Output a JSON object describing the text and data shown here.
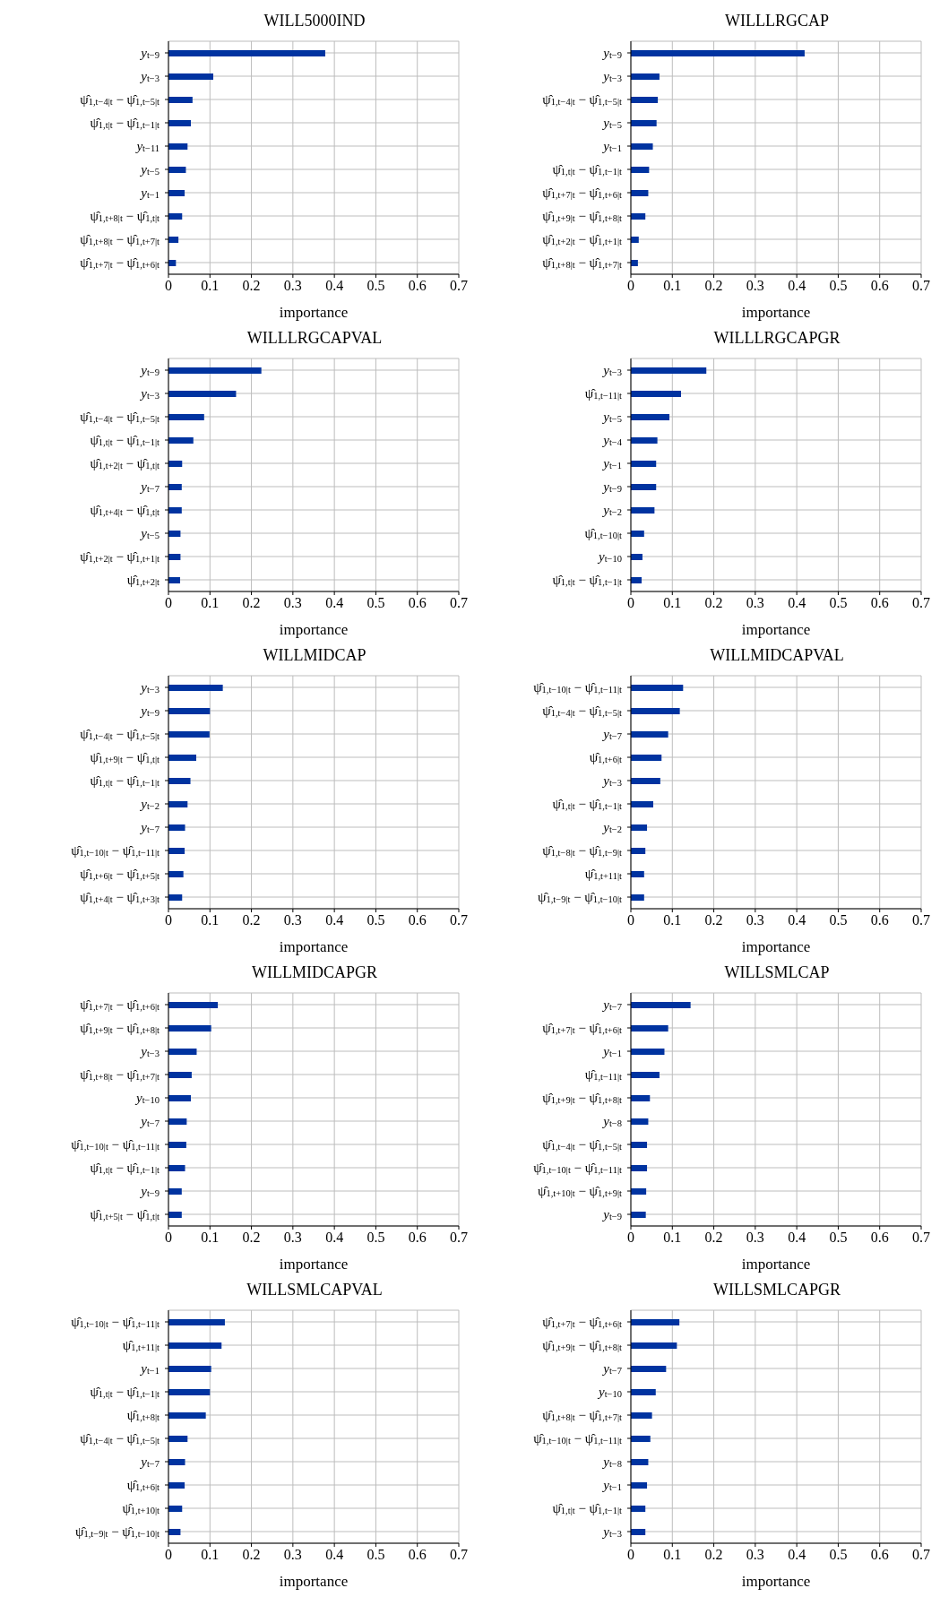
{
  "chart_data": [
    {
      "type": "bar",
      "orientation": "horizontal",
      "title": "WILL5000IND",
      "xlabel": "importance",
      "color": "#0033a0",
      "grid": true,
      "xlim": [
        0,
        0.7
      ],
      "xticks": [
        0,
        0.1,
        0.2,
        0.3,
        0.4,
        0.5,
        0.6,
        0.7
      ],
      "categories": [
        "y$_{t−9}$",
        "y$_{t−3}$",
        "ψ̂$_{1,t−4|t}$ − ψ̂$_{1,t−5|t}$",
        "ψ̂$_{1,t|t}$ − ψ̂$_{1,t−1|t}$",
        "y$_{t−11}$",
        "y$_{t−5}$",
        "y$_{t−1}$",
        "ψ̂$_{1,t+8|t}$ − ψ̂$_{1,t|t}$",
        "ψ̂$_{1,t+8|t}$ − ψ̂$_{1,t+7|t}$",
        "ψ̂$_{1,t+7|t}$ − ψ̂$_{1,t+6|t}$"
      ],
      "values": [
        0.378,
        0.108,
        0.058,
        0.054,
        0.046,
        0.042,
        0.039,
        0.033,
        0.024,
        0.018
      ]
    },
    {
      "type": "bar",
      "orientation": "horizontal",
      "title": "WILLLRGCAP",
      "xlabel": "importance",
      "color": "#0033a0",
      "grid": true,
      "xlim": [
        0,
        0.7
      ],
      "xticks": [
        0,
        0.1,
        0.2,
        0.3,
        0.4,
        0.5,
        0.6,
        0.7
      ],
      "categories": [
        "y$_{t−9}$",
        "y$_{t−3}$",
        "ψ̂$_{1,t−4|t}$ − ψ̂$_{1,t−5|t}$",
        "y$_{t−5}$",
        "y$_{t−1}$",
        "ψ̂$_{1,t|t}$ − ψ̂$_{1,t−1|t}$",
        "ψ̂$_{1,t+7|t}$ − ψ̂$_{1,t+6|t}$",
        "ψ̂$_{1,t+9|t}$ − ψ̂$_{1,t+8|t}$",
        "ψ̂$_{1,t+2|t}$ − ψ̂$_{1,t+1|t}$",
        "ψ̂$_{1,t+8|t}$ − ψ̂$_{1,t+7|t}$"
      ],
      "values": [
        0.419,
        0.069,
        0.065,
        0.062,
        0.053,
        0.044,
        0.042,
        0.035,
        0.019,
        0.017
      ]
    },
    {
      "type": "bar",
      "orientation": "horizontal",
      "title": "WILLLRGCAPVAL",
      "xlabel": "importance",
      "color": "#0033a0",
      "grid": true,
      "xlim": [
        0,
        0.7
      ],
      "xticks": [
        0,
        0.1,
        0.2,
        0.3,
        0.4,
        0.5,
        0.6,
        0.7
      ],
      "categories": [
        "y$_{t−9}$",
        "y$_{t−3}$",
        "ψ̂$_{1,t−4|t}$ − ψ̂$_{1,t−5|t}$",
        "ψ̂$_{1,t|t}$ − ψ̂$_{1,t−1|t}$",
        "ψ̂$_{1,t+2|t}$ − ψ̂$_{1,t|t}$",
        "y$_{t−7}$",
        "ψ̂$_{1,t+4|t}$ − ψ̂$_{1,t|t}$",
        "y$_{t−5}$",
        "ψ̂$_{1,t+2|t}$ − ψ̂$_{1,t+1|t}$",
        "ψ̂$_{1,t+2|t}$"
      ],
      "values": [
        0.224,
        0.163,
        0.086,
        0.06,
        0.033,
        0.032,
        0.032,
        0.029,
        0.029,
        0.028
      ]
    },
    {
      "type": "bar",
      "orientation": "horizontal",
      "title": "WILLLRGCAPGR",
      "xlabel": "importance",
      "color": "#0033a0",
      "grid": true,
      "xlim": [
        0,
        0.7
      ],
      "xticks": [
        0,
        0.1,
        0.2,
        0.3,
        0.4,
        0.5,
        0.6,
        0.7
      ],
      "categories": [
        "y$_{t−3}$",
        "ψ̂$_{1,t−11|t}$",
        "y$_{t−5}$",
        "y$_{t−4}$",
        "y$_{t−1}$",
        "y$_{t−9}$",
        "y$_{t−2}$",
        "ψ̂$_{1,t−10|t}$",
        "y$_{t−10}$",
        "ψ̂$_{1,t|t}$ − ψ̂$_{1,t−1|t}$"
      ],
      "values": [
        0.182,
        0.121,
        0.093,
        0.064,
        0.061,
        0.061,
        0.057,
        0.032,
        0.028,
        0.026
      ]
    },
    {
      "type": "bar",
      "orientation": "horizontal",
      "title": "WILLMIDCAP",
      "xlabel": "importance",
      "color": "#0033a0",
      "grid": true,
      "xlim": [
        0,
        0.7
      ],
      "xticks": [
        0,
        0.1,
        0.2,
        0.3,
        0.4,
        0.5,
        0.6,
        0.7
      ],
      "categories": [
        "y$_{t−3}$",
        "y$_{t−9}$",
        "ψ̂$_{1,t−4|t}$ − ψ̂$_{1,t−5|t}$",
        "ψ̂$_{1,t+9|t}$ − ψ̂$_{1,t|t}$",
        "ψ̂$_{1,t|t}$ − ψ̂$_{1,t−1|t}$",
        "y$_{t−2}$",
        "y$_{t−7}$",
        "ψ̂$_{1,t−10|t}$ − ψ̂$_{1,t−11|t}$",
        "ψ̂$_{1,t+6|t}$ − ψ̂$_{1,t+5|t}$",
        "ψ̂$_{1,t+4|t}$ − ψ̂$_{1,t+3|t}$"
      ],
      "values": [
        0.131,
        0.1,
        0.099,
        0.067,
        0.053,
        0.046,
        0.04,
        0.039,
        0.036,
        0.033
      ]
    },
    {
      "type": "bar",
      "orientation": "horizontal",
      "title": "WILLMIDCAPVAL",
      "xlabel": "importance",
      "color": "#0033a0",
      "grid": true,
      "xlim": [
        0,
        0.7
      ],
      "xticks": [
        0,
        0.1,
        0.2,
        0.3,
        0.4,
        0.5,
        0.6,
        0.7
      ],
      "categories": [
        "ψ̂$_{1,t−10|t}$ − ψ̂$_{1,t−11|t}$",
        "ψ̂$_{1,t−4|t}$ − ψ̂$_{1,t−5|t}$",
        "y$_{t−7}$",
        "ψ̂$_{1,t+6|t}$",
        "y$_{t−3}$",
        "ψ̂$_{1,t|t}$ − ψ̂$_{1,t−1|t}$",
        "y$_{t−2}$",
        "ψ̂$_{1,t−8|t}$ − ψ̂$_{1,t−9|t}$",
        "ψ̂$_{1,t+11|t}$",
        "ψ̂$_{1,t−9|t}$ − ψ̂$_{1,t−10|t}$"
      ],
      "values": [
        0.126,
        0.118,
        0.09,
        0.074,
        0.071,
        0.054,
        0.039,
        0.035,
        0.032,
        0.032
      ]
    },
    {
      "type": "bar",
      "orientation": "horizontal",
      "title": "WILLMIDCAPGR",
      "xlabel": "importance",
      "color": "#0033a0",
      "grid": true,
      "xlim": [
        0,
        0.7
      ],
      "xticks": [
        0,
        0.1,
        0.2,
        0.3,
        0.4,
        0.5,
        0.6,
        0.7
      ],
      "categories": [
        "ψ̂$_{1,t+7|t}$ − ψ̂$_{1,t+6|t}$",
        "ψ̂$_{1,t+9|t}$ − ψ̂$_{1,t+8|t}$",
        "y$_{t−3}$",
        "ψ̂$_{1,t+8|t}$ − ψ̂$_{1,t+7|t}$",
        "y$_{t−10}$",
        "y$_{t−7}$",
        "ψ̂$_{1,t−10|t}$ − ψ̂$_{1,t−11|t}$",
        "ψ̂$_{1,t|t}$ − ψ̂$_{1,t−1|t}$",
        "y$_{t−9}$",
        "ψ̂$_{1,t+5|t}$ − ψ̂$_{1,t|t}$"
      ],
      "values": [
        0.119,
        0.103,
        0.068,
        0.056,
        0.054,
        0.044,
        0.043,
        0.04,
        0.032,
        0.032
      ]
    },
    {
      "type": "bar",
      "orientation": "horizontal",
      "title": "WILLSMLCAP",
      "xlabel": "importance",
      "color": "#0033a0",
      "grid": true,
      "xlim": [
        0,
        0.7
      ],
      "xticks": [
        0,
        0.1,
        0.2,
        0.3,
        0.4,
        0.5,
        0.6,
        0.7
      ],
      "categories": [
        "y$_{t−7}$",
        "ψ̂$_{1,t+7|t}$ − ψ̂$_{1,t+6|t}$",
        "y$_{t−1}$",
        "ψ̂$_{1,t−11|t}$",
        "ψ̂$_{1,t+9|t}$ − ψ̂$_{1,t+8|t}$",
        "y$_{t−8}$",
        "ψ̂$_{1,t−4|t}$ − ψ̂$_{1,t−5|t}$",
        "ψ̂$_{1,t−10|t}$ − ψ̂$_{1,t−11|t}$",
        "ψ̂$_{1,t+10|t}$ − ψ̂$_{1,t+9|t}$",
        "y$_{t−9}$"
      ],
      "values": [
        0.144,
        0.09,
        0.081,
        0.069,
        0.046,
        0.042,
        0.039,
        0.039,
        0.037,
        0.036
      ]
    },
    {
      "type": "bar",
      "orientation": "horizontal",
      "title": "WILLSMLCAPVAL",
      "xlabel": "importance",
      "color": "#0033a0",
      "grid": true,
      "xlim": [
        0,
        0.7
      ],
      "xticks": [
        0,
        0.1,
        0.2,
        0.3,
        0.4,
        0.5,
        0.6,
        0.7
      ],
      "categories": [
        "ψ̂$_{1,t−10|t}$ − ψ̂$_{1,t−11|t}$",
        "ψ̂$_{1,t+11|t}$",
        "y$_{t−1}$",
        "ψ̂$_{1,t|t}$ − ψ̂$_{1,t−1|t}$",
        "ψ̂$_{1,t+8|t}$",
        "ψ̂$_{1,t−4|t}$ − ψ̂$_{1,t−5|t}$",
        "y$_{t−7}$",
        "ψ̂$_{1,t+6|t}$",
        "ψ̂$_{1,t+10|t}$",
        "ψ̂$_{1,t−9|t}$ − ψ̂$_{1,t−10|t}$"
      ],
      "values": [
        0.136,
        0.128,
        0.103,
        0.1,
        0.09,
        0.046,
        0.04,
        0.039,
        0.033,
        0.029
      ]
    },
    {
      "type": "bar",
      "orientation": "horizontal",
      "title": "WILLSMLCAPGR",
      "xlabel": "importance",
      "color": "#0033a0",
      "grid": true,
      "xlim": [
        0,
        0.7
      ],
      "xticks": [
        0,
        0.1,
        0.2,
        0.3,
        0.4,
        0.5,
        0.6,
        0.7
      ],
      "categories": [
        "ψ̂$_{1,t+7|t}$ − ψ̂$_{1,t+6|t}$",
        "ψ̂$_{1,t+9|t}$ − ψ̂$_{1,t+8|t}$",
        "y$_{t−7}$",
        "y$_{t−10}$",
        "ψ̂$_{1,t+8|t}$ − ψ̂$_{1,t+7|t}$",
        "ψ̂$_{1,t−10|t}$ − ψ̂$_{1,t−11|t}$",
        "y$_{t−8}$",
        "y$_{t−1}$",
        "ψ̂$_{1,t|t}$ − ψ̂$_{1,t−1|t}$",
        "y$_{t−3}$"
      ],
      "values": [
        0.117,
        0.111,
        0.085,
        0.06,
        0.051,
        0.047,
        0.042,
        0.039,
        0.035,
        0.035
      ]
    }
  ]
}
